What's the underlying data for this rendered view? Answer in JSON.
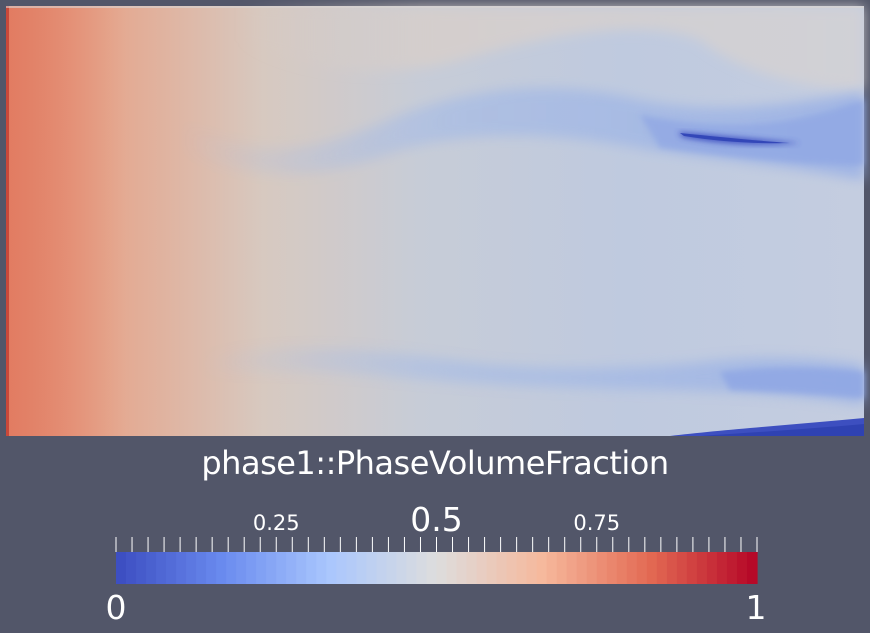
{
  "chart_data": {
    "type": "heatmap",
    "field_name": "phase1::PhaseVolumeFraction",
    "range": [
      0,
      1
    ],
    "range_labels": [
      "0",
      "1"
    ],
    "ticks": [
      {
        "value": 0.25,
        "label": "0.25",
        "style": "minor"
      },
      {
        "value": 0.5,
        "label": "0.5",
        "style": "major"
      },
      {
        "value": 0.75,
        "label": "0.75",
        "style": "minor"
      }
    ],
    "minor_tick_count": 40,
    "colormap": [
      "#3b4cc0",
      "#6a8bef",
      "#aac7fd",
      "#dddddd",
      "#f6b89c",
      "#e36a53",
      "#b40426"
    ],
    "background": "#525669"
  }
}
